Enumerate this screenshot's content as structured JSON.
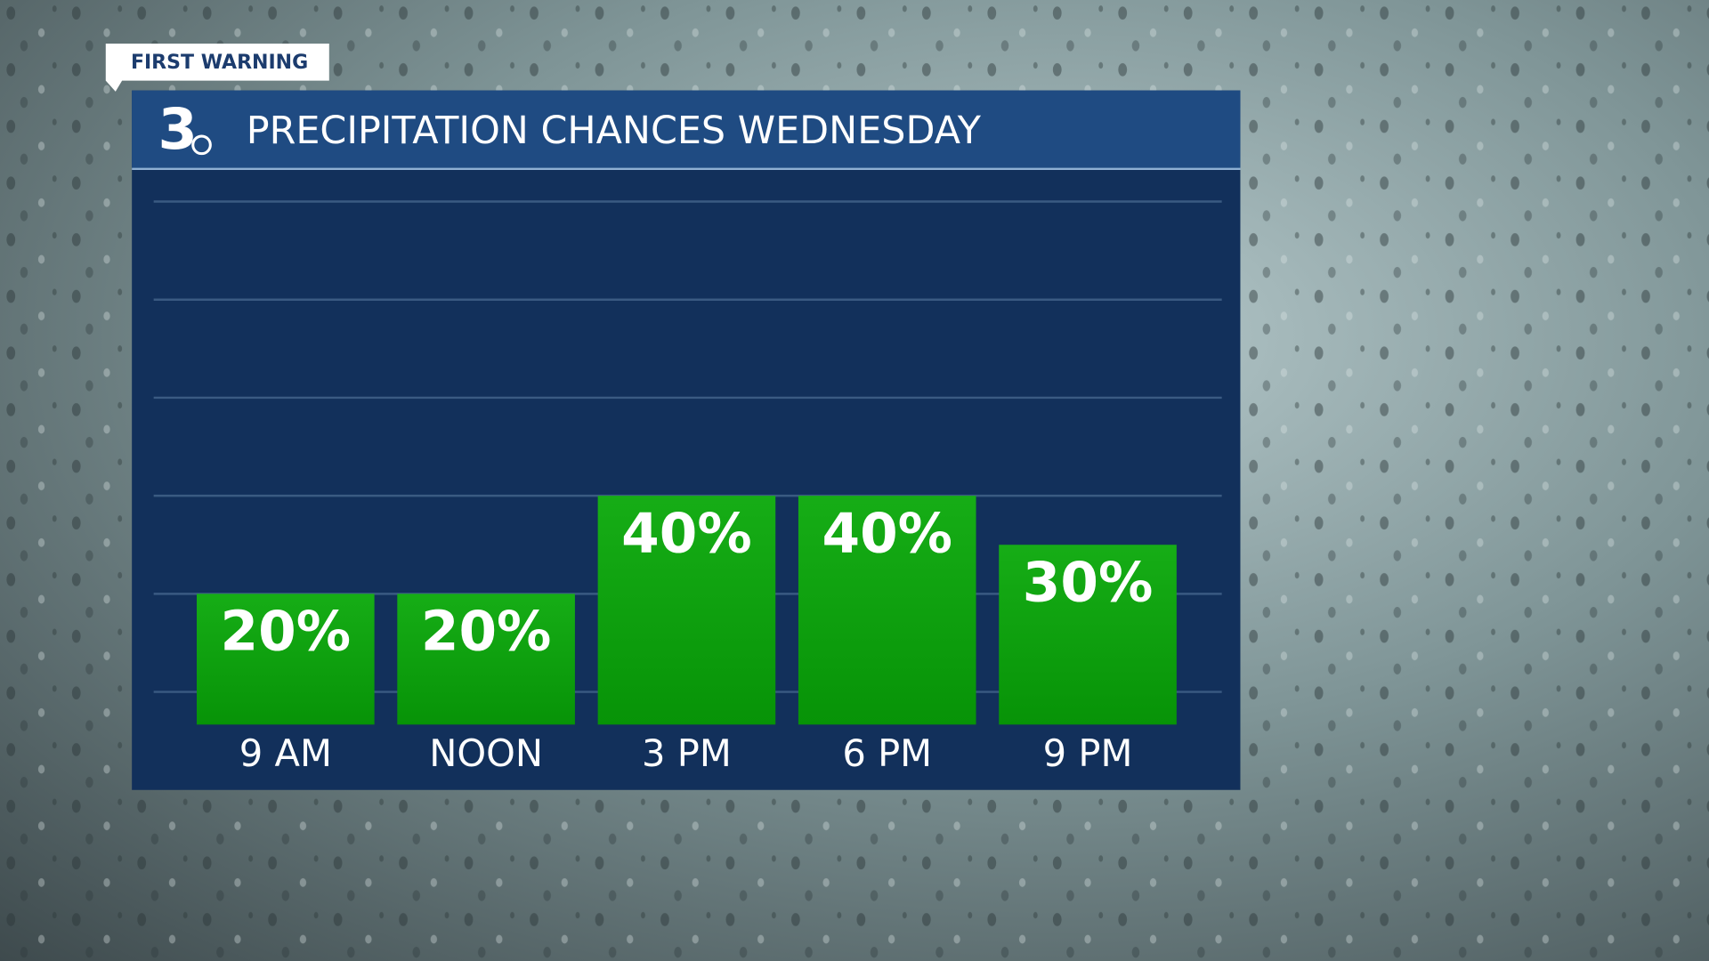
{
  "header": {
    "tag": "FIRST WARNING",
    "channel": "3"
  },
  "chart_data": {
    "type": "bar",
    "title": "PRECIPITATION CHANCES WEDNESDAY",
    "categories": [
      "9 AM",
      "NOON",
      "3 PM",
      "6 PM",
      "9 PM"
    ],
    "values": [
      20,
      20,
      40,
      40,
      30
    ],
    "value_labels": [
      "20%",
      "20%",
      "40%",
      "40%",
      "30%"
    ],
    "color": "#0b9e0b",
    "ylim": [
      0,
      100
    ],
    "yticks": [
      0,
      20,
      40,
      60,
      80,
      100
    ],
    "grid": true
  }
}
